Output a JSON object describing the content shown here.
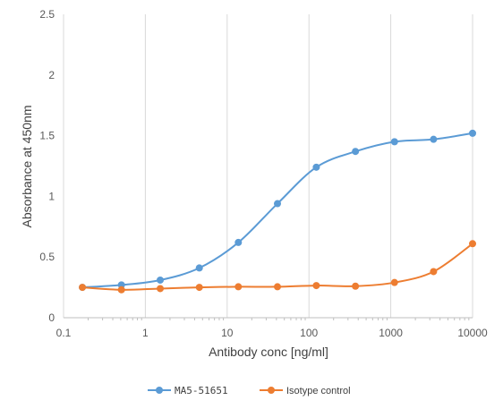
{
  "chart_data": {
    "type": "line",
    "title": "",
    "xlabel": "Antibody conc [ng/ml]",
    "ylabel": "Absorbance at 450nm",
    "x_scale": "log",
    "xlim": [
      0.1,
      10000
    ],
    "ylim": [
      0,
      2.5
    ],
    "x_ticks": [
      "0.1",
      "1",
      "10",
      "100",
      "1000",
      "10000"
    ],
    "y_ticks": [
      "0",
      "0.5",
      "1",
      "1.5",
      "2",
      "2.5"
    ],
    "grid": "vertical major gridlines",
    "legend_position": "bottom",
    "colors": {
      "MA5-51651": "#5b9bd5",
      "Isotype control": "#ed7d31"
    },
    "x": [
      0.17,
      0.51,
      1.52,
      4.57,
      13.7,
      41.2,
      123,
      370,
      1111,
      3333,
      10000
    ],
    "series": [
      {
        "name": "MA5-51651",
        "values": [
          0.25,
          0.27,
          0.31,
          0.41,
          0.62,
          0.94,
          1.24,
          1.37,
          1.45,
          1.47,
          1.52
        ]
      },
      {
        "name": "Isotype control",
        "values": [
          0.25,
          0.23,
          0.24,
          0.25,
          0.255,
          0.255,
          0.265,
          0.26,
          0.29,
          0.38,
          0.61
        ]
      }
    ]
  }
}
